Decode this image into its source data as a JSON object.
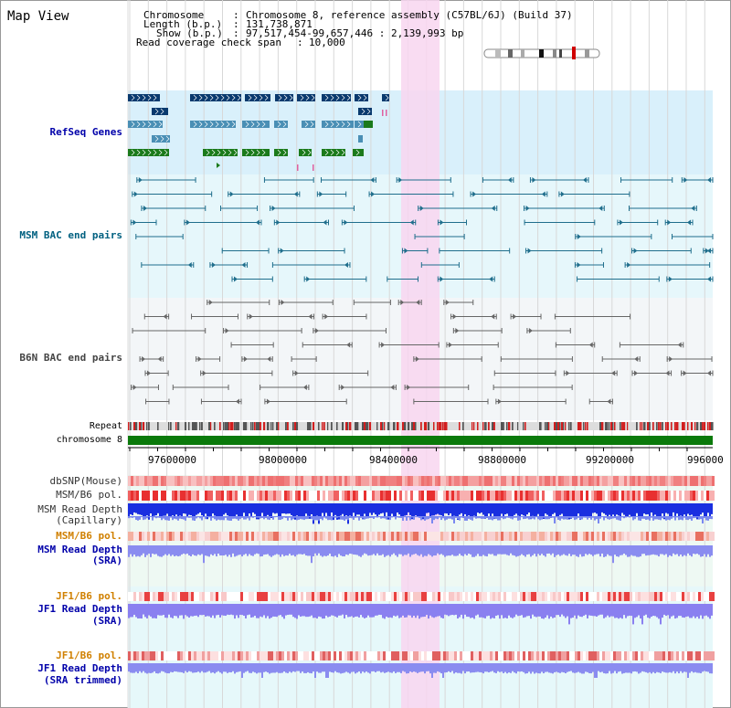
{
  "view_title": "Map View",
  "header": {
    "chromosome_key": "Chromosome",
    "chromosome_val": "Chromosome 8, reference assembly (C57BL/6J) (Build 37)",
    "length_key": "Length (b.p.)",
    "length_val": "131,738,871",
    "show_key": "Show (b.p.)",
    "show_val": "97,517,454-99,657,446 : 2,139,993 bp",
    "coverage_key": "Read coverage check span",
    "coverage_val": "10,000"
  },
  "tracks": {
    "refseq": "RefSeq Genes",
    "msm_bac": "MSM BAC end pairs",
    "b6n_bac": "B6N BAC end pairs",
    "repeat": "Repeat",
    "chromosome": "chromosome 8",
    "dbsnp": "dbSNP(Mouse)",
    "msm_b6_pol_1": "MSM/B6 pol.",
    "msm_depth_cap_1": "MSM Read Depth",
    "msm_depth_cap_2": "(Capillary)",
    "msm_b6_pol_2": "MSM/B6 pol.",
    "msm_depth_sra_1": "MSM Read Depth",
    "msm_depth_sra_2": "(SRA)",
    "jf1_b6_pol_1": "JF1/B6 pol.",
    "jf1_depth_sra_1": "JF1 Read Depth",
    "jf1_depth_sra_2": "(SRA)",
    "jf1_b6_pol_2": "JF1/B6 pol.",
    "jf1_depth_trim_1": "JF1 Read Depth",
    "jf1_depth_trim_2": "(SRA trimmed)"
  },
  "axis": {
    "ticks": [
      "97600000",
      "98000000",
      "98400000",
      "98800000",
      "99200000",
      "996000"
    ]
  },
  "colors": {
    "refseq_dark": "#0a3a6e",
    "refseq_mid": "#4a8fb5",
    "refseq_green": "#1b7a1b",
    "msm_bac": "#1f6e8c",
    "b6n_bac": "#666666",
    "highlight": "#f8d8f0",
    "chromosome_bar": "#0b7a0b",
    "label_blue": "#0000aa",
    "label_orange": "#d08000",
    "label_teal": "#006080"
  }
}
